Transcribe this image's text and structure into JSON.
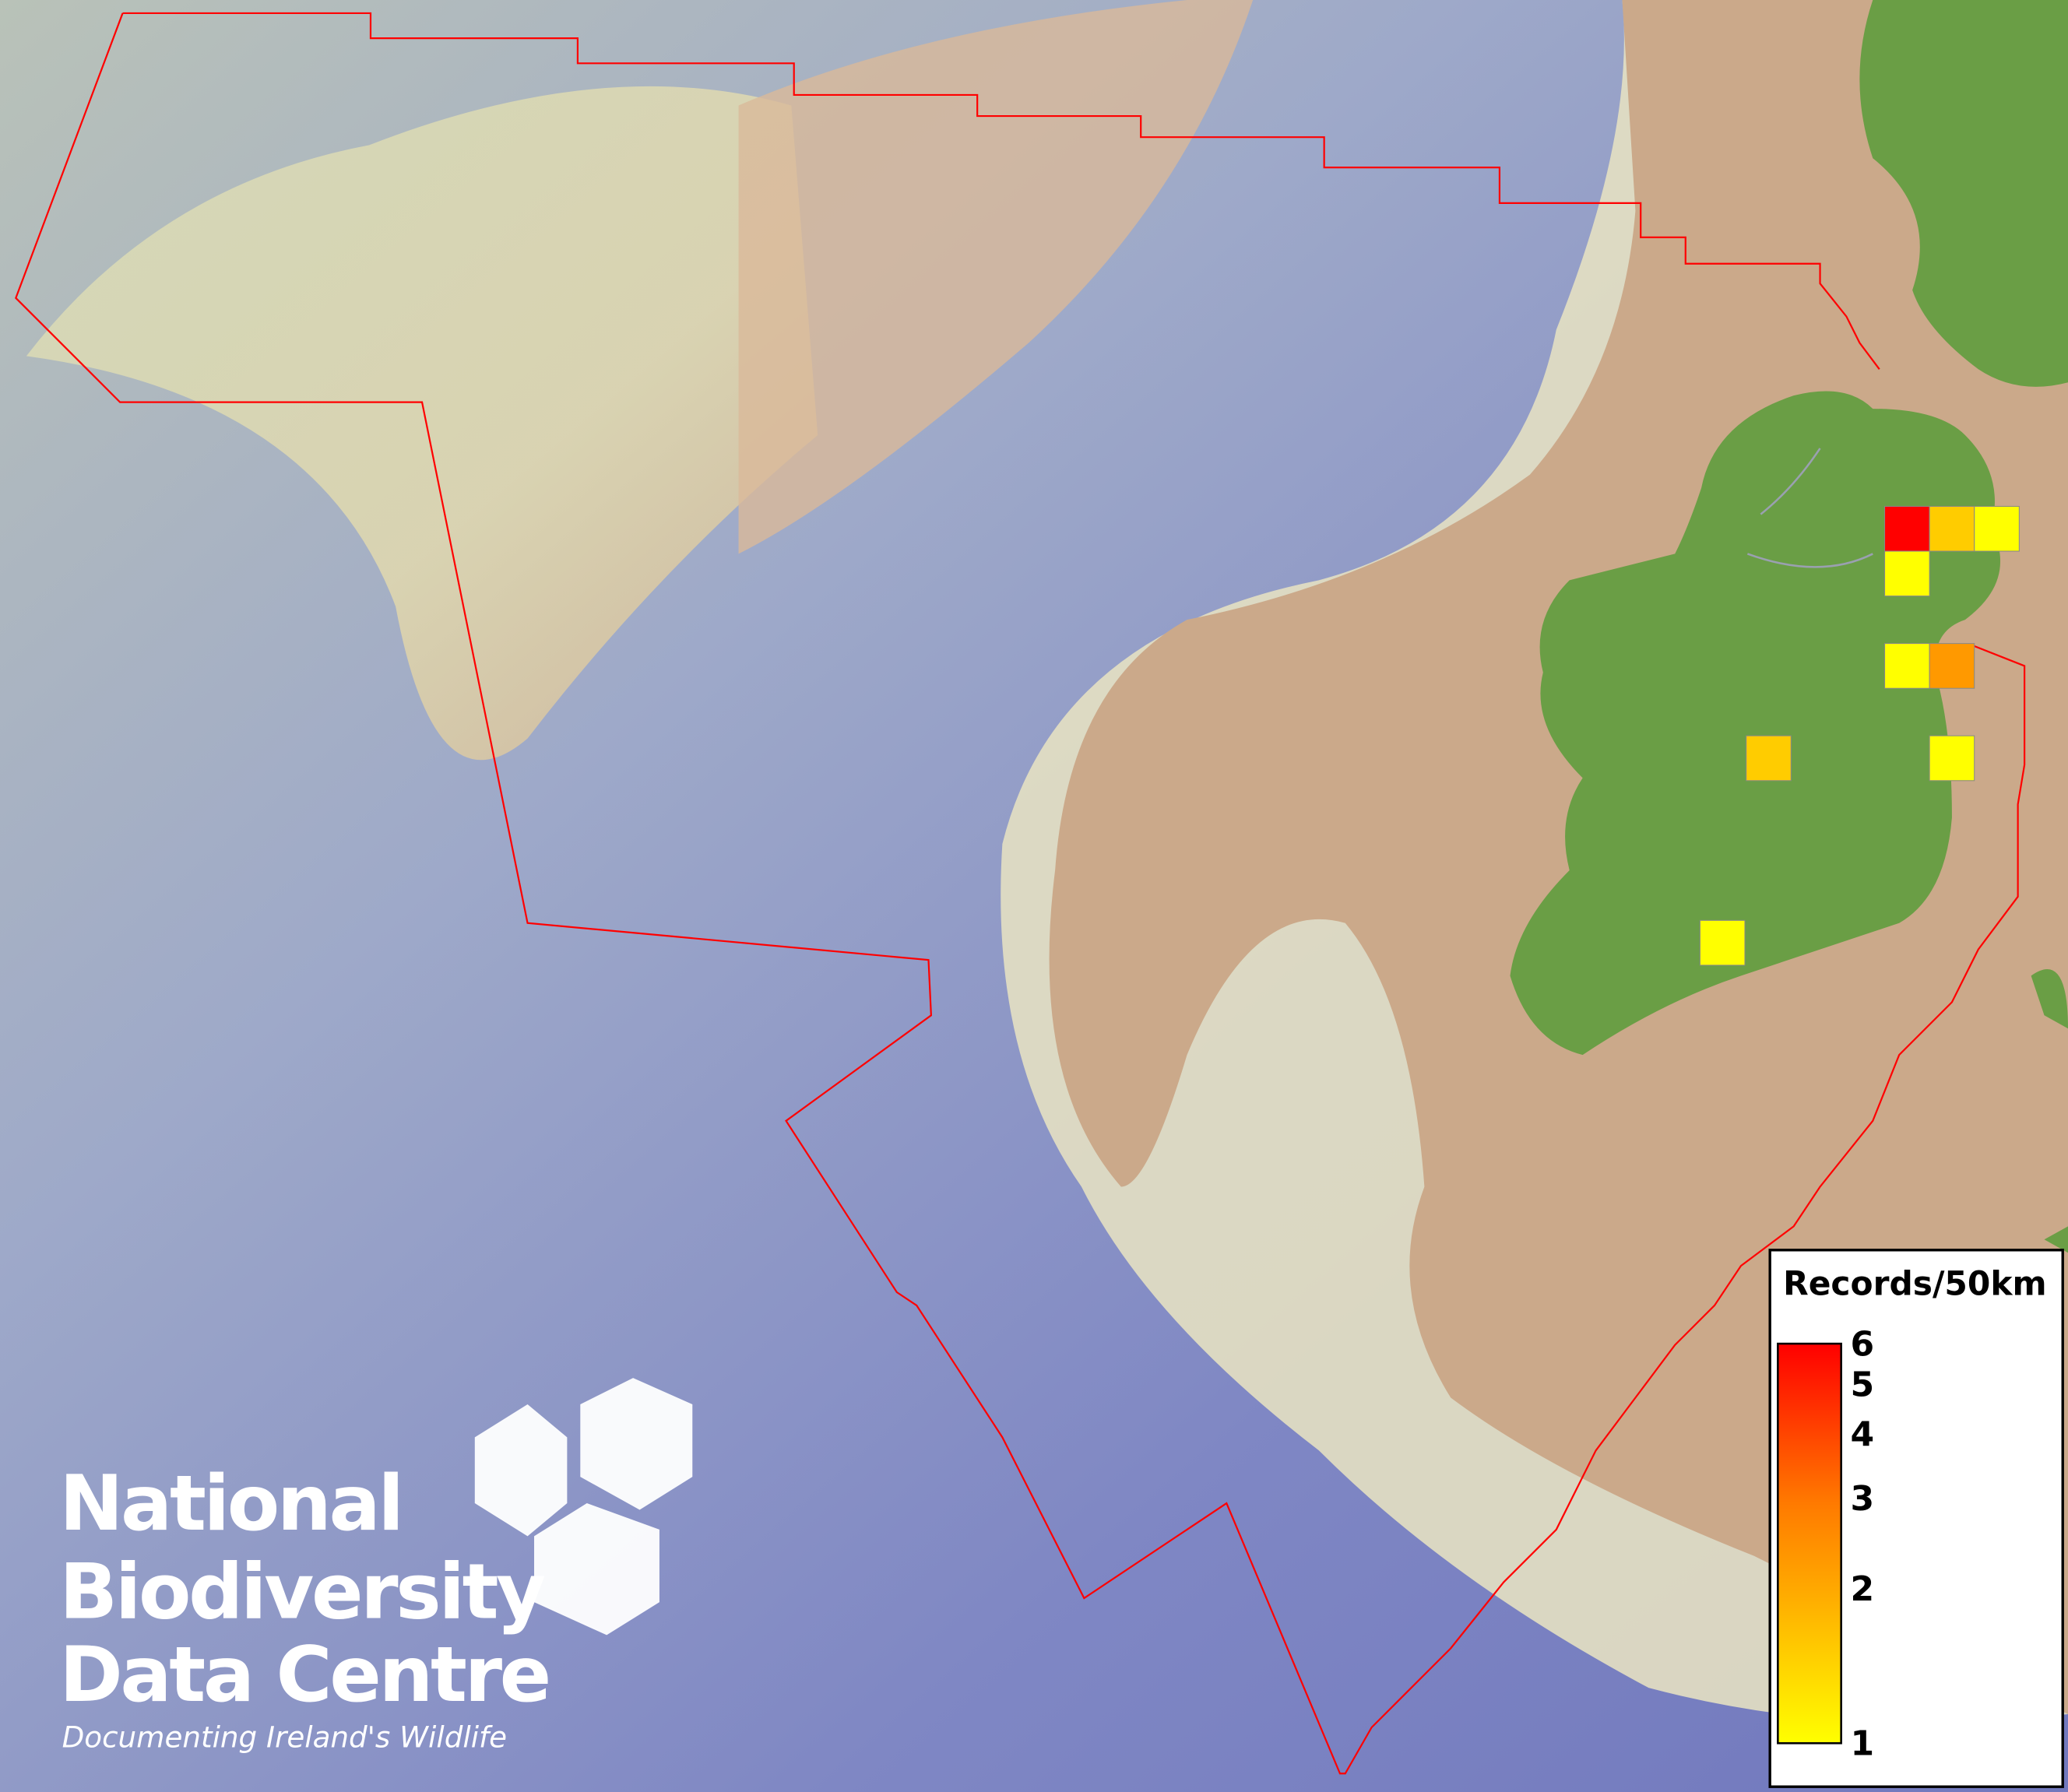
{
  "legend": {
    "title": "Records/50km",
    "ticks": [
      "6",
      "5",
      "4",
      "3",
      "2",
      "1"
    ],
    "tick_values": [
      6,
      5,
      4,
      3,
      2,
      1
    ],
    "range": [
      1,
      6
    ],
    "color_low": "#ffff00",
    "color_high": "#ff0000"
  },
  "grid_cells": [
    {
      "value": 6,
      "color": "#ff0000"
    },
    {
      "value": 2.5,
      "color": "#ffcc00"
    },
    {
      "value": 1,
      "color": "#ffff00"
    },
    {
      "value": 1,
      "color": "#ffff00"
    },
    {
      "value": 1,
      "color": "#ffff00"
    },
    {
      "value": 3.3,
      "color": "#ff9900"
    },
    {
      "value": 2.5,
      "color": "#ffcc00"
    },
    {
      "value": 1,
      "color": "#ffff00"
    },
    {
      "value": 1,
      "color": "#ffff00"
    }
  ],
  "logo": {
    "line1": "National",
    "line2": "Biodiversity",
    "line3": "Data Centre",
    "tagline": "Documenting Ireland's Wildlife"
  },
  "colors": {
    "land": "#6a9e45",
    "shelf": "#cba98a",
    "deep_ocean": "#7f87c4",
    "boundary": "#ff0000"
  }
}
